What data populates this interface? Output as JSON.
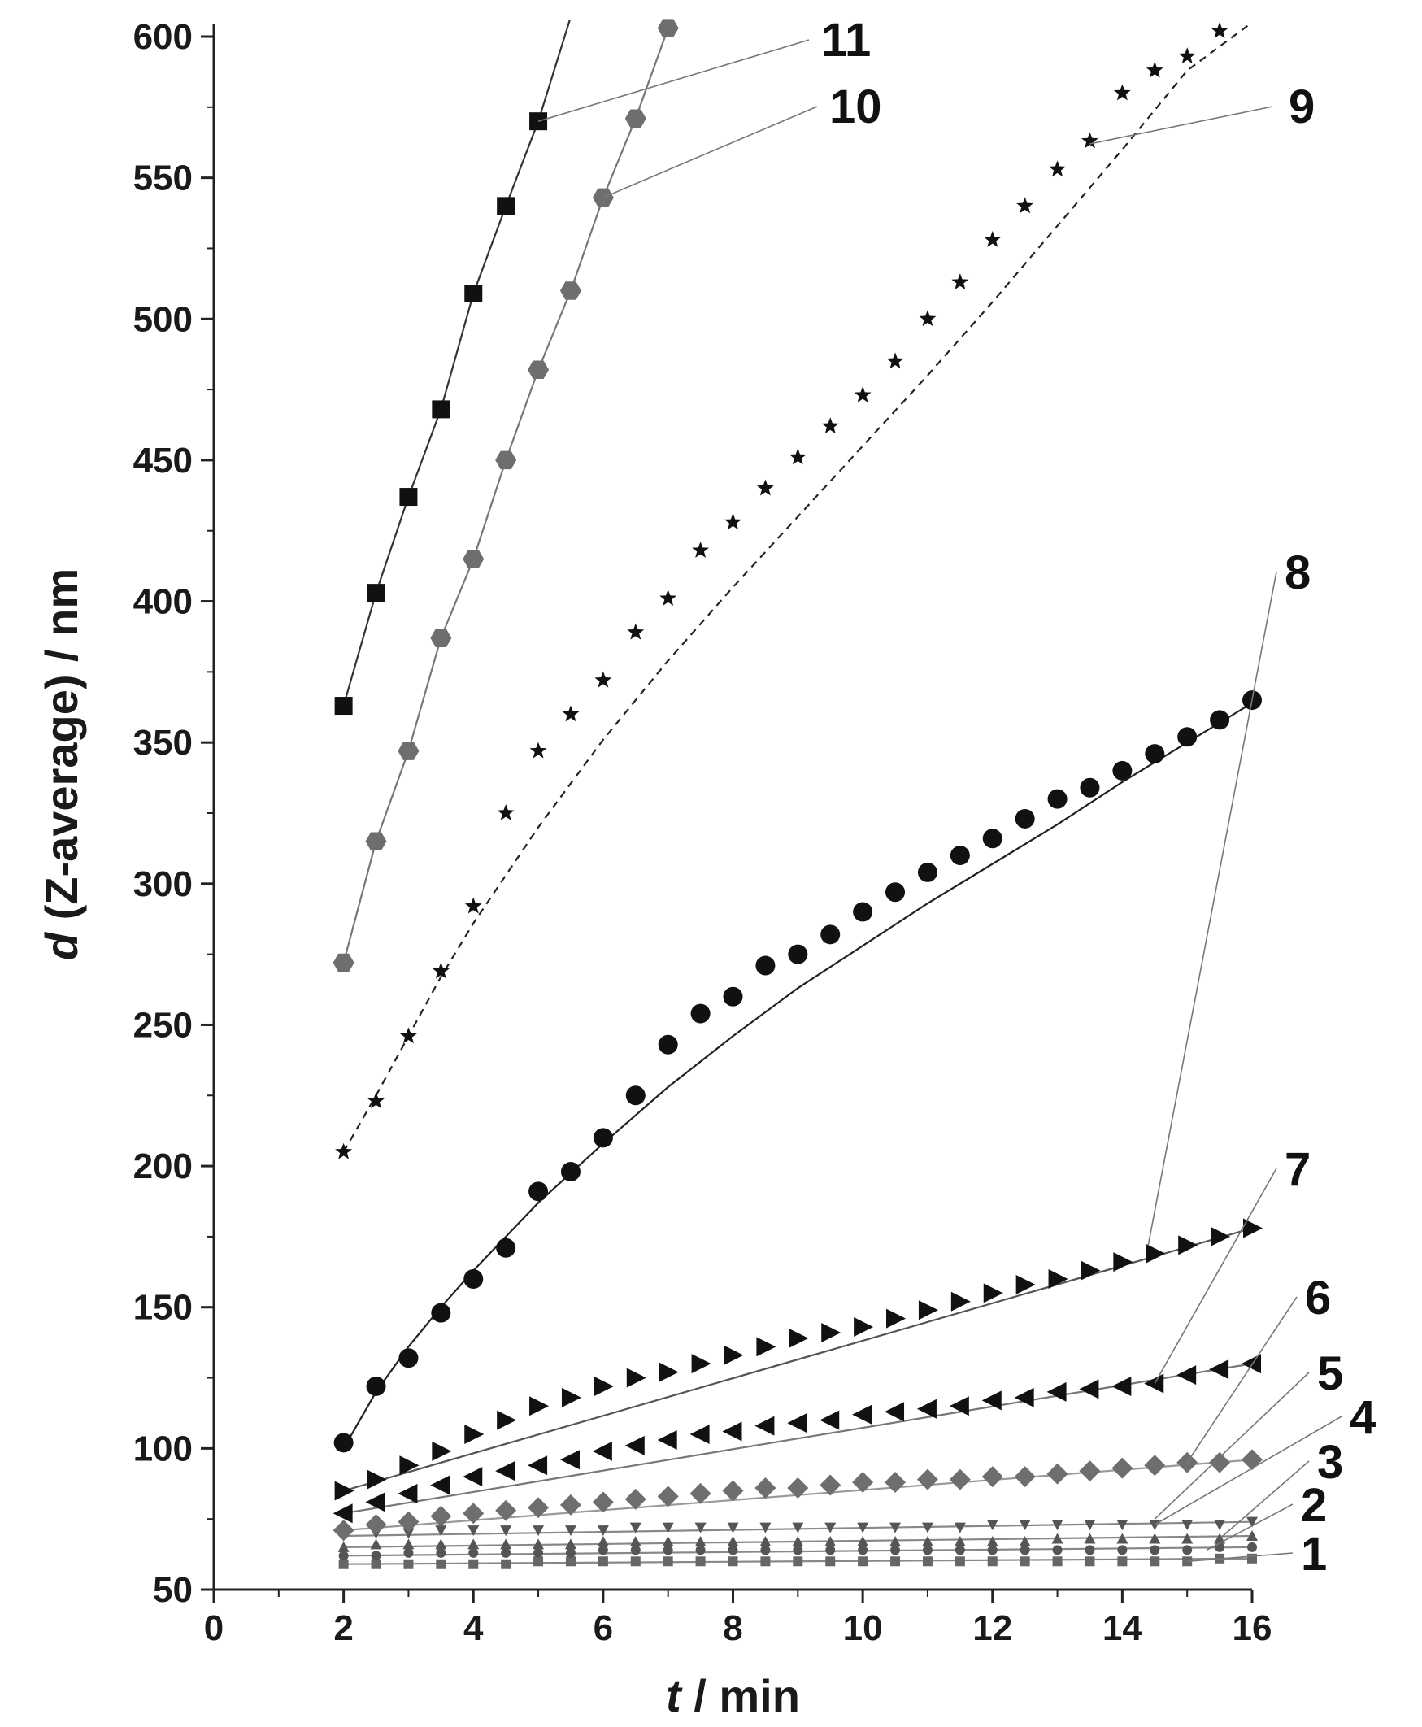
{
  "chart_data": {
    "type": "scatter",
    "title": "",
    "xlabel_var": "t",
    "xlabel_unit": " / min",
    "ylabel_var": "d",
    "ylabel_unit": " (Z-average) / nm",
    "xlim": [
      0,
      16
    ],
    "ylim": [
      50,
      600
    ],
    "xticks": [
      0,
      2,
      4,
      6,
      8,
      10,
      12,
      14,
      16
    ],
    "yticks": [
      50,
      100,
      150,
      200,
      250,
      300,
      350,
      400,
      450,
      500,
      550,
      600
    ],
    "grid": false,
    "legend": "inline labels",
    "series": [
      {
        "name": "1",
        "label": "1",
        "marker": "square-small",
        "color": "#666666",
        "line_color": "#888888",
        "dash": false,
        "x": [
          2,
          2.5,
          3,
          3.5,
          4,
          4.5,
          5,
          5.5,
          6,
          6.5,
          7,
          7.5,
          8,
          8.5,
          9,
          9.5,
          10,
          10.5,
          11,
          11.5,
          12,
          12.5,
          13,
          13.5,
          14,
          14.5,
          15,
          15.5,
          16
        ],
        "y": [
          59,
          59,
          59,
          59,
          59,
          59,
          60,
          60,
          60,
          60,
          60,
          60,
          60,
          60,
          60,
          60,
          60,
          60,
          60,
          60,
          60,
          60,
          60,
          60,
          60,
          60,
          60,
          61,
          61
        ],
        "fit_x": [
          2,
          16
        ],
        "fit_y": [
          59,
          61
        ],
        "label_anchor": [
          15,
          60
        ]
      },
      {
        "name": "2",
        "label": "2",
        "marker": "circle-small",
        "color": "#555555",
        "line_color": "#888888",
        "dash": false,
        "x": [
          2,
          2.5,
          3,
          3.5,
          4,
          4.5,
          5,
          5.5,
          6,
          6.5,
          7,
          7.5,
          8,
          8.5,
          9,
          9.5,
          10,
          10.5,
          11,
          11.5,
          12,
          12.5,
          13,
          13.5,
          14,
          14.5,
          15,
          15.5,
          16
        ],
        "y": [
          62,
          62,
          63,
          63,
          63,
          63,
          63,
          63,
          64,
          64,
          64,
          64,
          64,
          64,
          64,
          64,
          64,
          64,
          64,
          64,
          64,
          64,
          64,
          64,
          64,
          64,
          64,
          65,
          65
        ],
        "fit_x": [
          2,
          16
        ],
        "fit_y": [
          62,
          65
        ],
        "label_anchor": [
          15.3,
          64
        ]
      },
      {
        "name": "3",
        "label": "3",
        "marker": "triangle-small",
        "color": "#555555",
        "line_color": "#888888",
        "dash": false,
        "x": [
          2,
          2.5,
          3,
          3.5,
          4,
          4.5,
          5,
          5.5,
          6,
          6.5,
          7,
          7.5,
          8,
          8.5,
          9,
          9.5,
          10,
          10.5,
          11,
          11.5,
          12,
          12.5,
          13,
          13.5,
          14,
          14.5,
          15,
          15.5,
          16
        ],
        "y": [
          65,
          66,
          66,
          66,
          66,
          66,
          66,
          66,
          67,
          67,
          67,
          67,
          67,
          67,
          67,
          67,
          67,
          67,
          67,
          67,
          67,
          67,
          68,
          68,
          68,
          68,
          68,
          68,
          69
        ],
        "fit_x": [
          2,
          16
        ],
        "fit_y": [
          65,
          69
        ],
        "label_anchor": [
          15.5,
          68
        ]
      },
      {
        "name": "4",
        "label": "4",
        "marker": "triangle-down-small",
        "color": "#555555",
        "line_color": "#888888",
        "dash": false,
        "x": [
          2,
          2.5,
          3,
          3.5,
          4,
          4.5,
          5,
          5.5,
          6,
          6.5,
          7,
          7.5,
          8,
          8.5,
          9,
          9.5,
          10,
          10.5,
          11,
          11.5,
          12,
          12.5,
          13,
          13.5,
          14,
          14.5,
          15,
          15.5,
          16
        ],
        "y": [
          69,
          70,
          70,
          71,
          71,
          71,
          71,
          71,
          71,
          72,
          72,
          72,
          72,
          72,
          72,
          72,
          72,
          72,
          72,
          72,
          73,
          73,
          73,
          73,
          73,
          73,
          73,
          73,
          74
        ],
        "fit_x": [
          2,
          16
        ],
        "fit_y": [
          69,
          74
        ],
        "label_anchor": [
          14.5,
          73
        ]
      },
      {
        "name": "5",
        "label": "5",
        "marker": "diamond",
        "color": "#6e6e6e",
        "line_color": "#999999",
        "dash": false,
        "x": [
          2,
          2.5,
          3,
          3.5,
          4,
          4.5,
          5,
          5.5,
          6,
          6.5,
          7,
          7.5,
          8,
          8.5,
          9,
          9.5,
          10,
          10.5,
          11,
          11.5,
          12,
          12.5,
          13,
          13.5,
          14,
          14.5,
          15,
          15.5,
          16
        ],
        "y": [
          71,
          73,
          74,
          76,
          77,
          78,
          79,
          80,
          81,
          82,
          83,
          84,
          85,
          86,
          86,
          87,
          88,
          88,
          89,
          89,
          90,
          90,
          91,
          92,
          93,
          94,
          95,
          95,
          96
        ],
        "fit_x": [
          2,
          16
        ],
        "fit_y": [
          71,
          96
        ],
        "label_anchor": [
          14.5,
          75
        ]
      },
      {
        "name": "6",
        "label": "6",
        "marker": "triangle-left",
        "color": "#111111",
        "line_color": "#777777",
        "dash": false,
        "x": [
          2,
          2.5,
          3,
          3.5,
          4,
          4.5,
          5,
          5.5,
          6,
          6.5,
          7,
          7.5,
          8,
          8.5,
          9,
          9.5,
          10,
          10.5,
          11,
          11.5,
          12,
          12.5,
          13,
          13.5,
          14,
          14.5,
          15,
          15.5,
          16
        ],
        "y": [
          77,
          81,
          84,
          87,
          90,
          92,
          94,
          96,
          99,
          101,
          103,
          105,
          106,
          108,
          109,
          110,
          112,
          113,
          114,
          115,
          117,
          118,
          120,
          121,
          122,
          123,
          126,
          128,
          130
        ],
        "fit_x": [
          2,
          16
        ],
        "fit_y": [
          77,
          130
        ],
        "label_anchor": [
          15,
          95
        ]
      },
      {
        "name": "7",
        "label": "7",
        "marker": "triangle-right",
        "color": "#111111",
        "line_color": "#555555",
        "dash": false,
        "x": [
          2,
          2.5,
          3,
          3.5,
          4,
          4.5,
          5,
          5.5,
          6,
          6.5,
          7,
          7.5,
          8,
          8.5,
          9,
          9.5,
          10,
          10.5,
          11,
          11.5,
          12,
          12.5,
          13,
          13.5,
          14,
          14.5,
          15,
          15.5,
          16
        ],
        "y": [
          85,
          89,
          94,
          99,
          105,
          110,
          115,
          118,
          122,
          125,
          127,
          130,
          133,
          136,
          139,
          141,
          143,
          146,
          149,
          152,
          155,
          158,
          160,
          163,
          166,
          169,
          172,
          175,
          178
        ],
        "fit_x": [
          2,
          16
        ],
        "fit_y": [
          85,
          178
        ],
        "label_anchor": [
          14.5,
          123
        ]
      },
      {
        "name": "8",
        "label": "8",
        "marker": "circle",
        "color": "#111111",
        "line_color": "#222222",
        "dash": false,
        "x": [
          2,
          2.5,
          3,
          3.5,
          4,
          4.5,
          5,
          5.5,
          6,
          6.5,
          7,
          7.5,
          8,
          8.5,
          9,
          9.5,
          10,
          10.5,
          11,
          11.5,
          12,
          12.5,
          13,
          13.5,
          14,
          14.5,
          15,
          15.5,
          16
        ],
        "y": [
          102,
          122,
          132,
          148,
          160,
          171,
          191,
          198,
          210,
          225,
          243,
          254,
          260,
          271,
          275,
          282,
          290,
          297,
          304,
          310,
          316,
          323,
          330,
          334,
          340,
          346,
          352,
          358,
          365
        ],
        "fit_x": [
          2,
          2.5,
          3,
          3.5,
          4,
          5,
          6,
          7,
          8,
          9,
          10,
          11,
          12,
          13,
          14,
          15,
          16
        ],
        "fit_y": [
          100,
          120,
          136,
          150,
          163,
          187,
          208,
          228,
          246,
          263,
          278,
          293,
          307,
          321,
          336,
          350,
          364
        ],
        "label_anchor": [
          14.4,
          172
        ]
      },
      {
        "name": "9",
        "label": "9",
        "marker": "star",
        "color": "#111111",
        "line_color": "#222222",
        "dash": true,
        "x": [
          2,
          2.5,
          3,
          3.5,
          4,
          4.5,
          5,
          5.5,
          6,
          6.5,
          7,
          7.5,
          8,
          8.5,
          9,
          9.5,
          10,
          10.5,
          11,
          11.5,
          12,
          12.5,
          13,
          13.5,
          14,
          14.5,
          15,
          15.5
        ],
        "y": [
          205,
          223,
          246,
          269,
          292,
          325,
          347,
          360,
          372,
          389,
          401,
          418,
          428,
          440,
          451,
          462,
          473,
          485,
          500,
          513,
          528,
          540,
          553,
          563,
          580,
          588,
          593,
          602
        ],
        "fit_x": [
          2,
          2.5,
          3,
          3.5,
          4,
          5,
          6,
          7,
          8,
          9,
          10,
          11,
          12,
          13,
          14,
          15,
          16
        ],
        "fit_y": [
          205,
          225,
          246,
          267,
          286,
          320,
          351,
          379,
          405,
          430,
          455,
          480,
          506,
          533,
          560,
          588,
          605
        ],
        "label_anchor": [
          13.5,
          562
        ]
      },
      {
        "name": "10",
        "label": "10",
        "marker": "hexagon",
        "color": "#6e6e6e",
        "line_color": "#777777",
        "dash": false,
        "x": [
          2,
          2.5,
          3,
          3.5,
          4,
          4.5,
          5,
          5.5,
          6,
          6.5,
          7
        ],
        "y": [
          272,
          315,
          347,
          387,
          415,
          450,
          482,
          510,
          543,
          571,
          603
        ],
        "fit_x": [
          2,
          2.5,
          3,
          3.5,
          4,
          4.5,
          5,
          5.5,
          6,
          6.5,
          7
        ],
        "fit_y": [
          272,
          315,
          347,
          387,
          415,
          450,
          482,
          510,
          543,
          571,
          603
        ],
        "label_anchor": [
          6,
          543
        ]
      },
      {
        "name": "11",
        "label": "11",
        "marker": "square",
        "color": "#111111",
        "line_color": "#333333",
        "dash": false,
        "x": [
          2,
          2.5,
          3,
          3.5,
          4,
          4.5,
          5
        ],
        "y": [
          363,
          403,
          437,
          468,
          509,
          540,
          570
        ],
        "fit_x": [
          2,
          2.5,
          3,
          3.5,
          4,
          4.5,
          5,
          5.5
        ],
        "fit_y": [
          363,
          403,
          437,
          468,
          509,
          540,
          570,
          607
        ],
        "label_anchor": [
          5,
          570
        ]
      }
    ]
  }
}
